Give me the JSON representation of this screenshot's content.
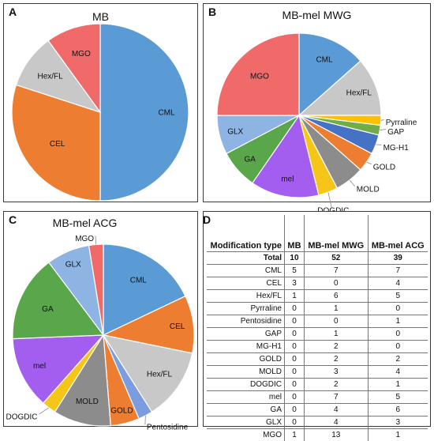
{
  "chart_data": [
    {
      "panel": "A",
      "type": "pie",
      "title": "MB",
      "categories": [
        "CML",
        "CEL",
        "Hex/FL",
        "MGO"
      ],
      "values": [
        5,
        3,
        1,
        1
      ],
      "colors": [
        "#5b9bd5",
        "#ed7d31",
        "#c8c8c8",
        "#f06a6a"
      ]
    },
    {
      "panel": "B",
      "type": "pie",
      "title": "MB-mel MWG",
      "categories": [
        "CML",
        "Hex/FL",
        "Pyrraline",
        "GAP",
        "MG-H1",
        "GOLD",
        "MOLD",
        "DOGDIC",
        "mel",
        "GA",
        "GLX",
        "MGO"
      ],
      "values": [
        7,
        6,
        1,
        1,
        2,
        2,
        3,
        2,
        7,
        4,
        4,
        13
      ],
      "colors": [
        "#5b9bd5",
        "#c8c8c8",
        "#ffc000",
        "#70ad47",
        "#4472c4",
        "#ed7d31",
        "#8c8c8c",
        "#f5c518",
        "#a35ef0",
        "#5aa64a",
        "#8db4e2",
        "#f06a6a"
      ]
    },
    {
      "panel": "C",
      "type": "pie",
      "title": "MB-mel ACG",
      "categories": [
        "CML",
        "CEL",
        "Hex/FL",
        "Pentosidine",
        "GOLD",
        "MOLD",
        "DOGDIC",
        "mel",
        "GA",
        "GLX",
        "MGO"
      ],
      "values": [
        7,
        4,
        5,
        1,
        2,
        4,
        1,
        5,
        6,
        3,
        1
      ],
      "colors": [
        "#5b9bd5",
        "#ed7d31",
        "#c8c8c8",
        "#7b9de0",
        "#ed7d31",
        "#8c8c8c",
        "#f5c518",
        "#a35ef0",
        "#5aa64a",
        "#8db4e2",
        "#f06a6a"
      ]
    },
    {
      "panel": "D",
      "type": "table",
      "columns": [
        "Modification type",
        "MB",
        "MB-mel MWG",
        "MB-mel ACG"
      ],
      "rows": [
        [
          "Total",
          "10",
          "52",
          "39"
        ],
        [
          "CML",
          "5",
          "7",
          "7"
        ],
        [
          "CEL",
          "3",
          "0",
          "4"
        ],
        [
          "Hex/FL",
          "1",
          "6",
          "5"
        ],
        [
          "Pyrraline",
          "0",
          "1",
          "0"
        ],
        [
          "Pentosidine",
          "0",
          "0",
          "1"
        ],
        [
          "GAP",
          "0",
          "1",
          "0"
        ],
        [
          "MG-H1",
          "0",
          "2",
          "0"
        ],
        [
          "GOLD",
          "0",
          "2",
          "2"
        ],
        [
          "MOLD",
          "0",
          "3",
          "4"
        ],
        [
          "DOGDIC",
          "0",
          "2",
          "1"
        ],
        [
          "mel",
          "0",
          "7",
          "5"
        ],
        [
          "GA",
          "0",
          "4",
          "6"
        ],
        [
          "GLX",
          "0",
          "4",
          "3"
        ],
        [
          "MGO",
          "1",
          "13",
          "1"
        ]
      ]
    }
  ],
  "panel_labels": {
    "a": "A",
    "b": "B",
    "c": "C",
    "d": "D"
  }
}
